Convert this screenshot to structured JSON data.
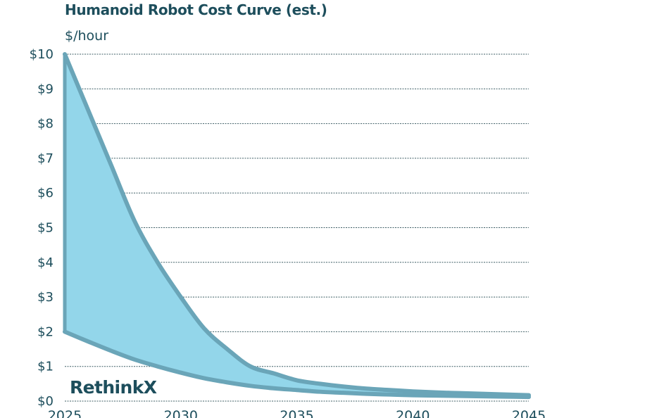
{
  "chart_data": {
    "type": "area",
    "title": "Humanoid Robot Cost Curve (est.)",
    "ylabel": "$/hour",
    "xlabel": "",
    "x_ticks": [
      "2025",
      "2030",
      "2035",
      "2040",
      "2045"
    ],
    "y_ticks": [
      "$0",
      "$1",
      "$2",
      "$3",
      "$4",
      "$5",
      "$6",
      "$7",
      "$8",
      "$9",
      "$10"
    ],
    "xlim": [
      2025,
      2045
    ],
    "ylim": [
      0,
      10
    ],
    "grid": true,
    "legend": false,
    "x": [
      2025,
      2026,
      2027,
      2028,
      2029,
      2030,
      2031,
      2032,
      2033,
      2034,
      2035,
      2036,
      2037,
      2038,
      2039,
      2040,
      2041,
      2042,
      2043,
      2044,
      2045
    ],
    "series": [
      {
        "values": [
          10.0,
          8.4,
          6.8,
          5.2,
          4.0,
          3.0,
          2.1,
          1.5,
          1.0,
          0.8,
          0.6,
          0.5,
          0.42,
          0.36,
          0.32,
          0.28,
          0.25,
          0.23,
          0.21,
          0.19,
          0.17
        ]
      },
      {
        "values": [
          2.0,
          1.72,
          1.45,
          1.2,
          1.0,
          0.82,
          0.66,
          0.54,
          0.44,
          0.37,
          0.32,
          0.27,
          0.24,
          0.21,
          0.19,
          0.17,
          0.16,
          0.15,
          0.14,
          0.13,
          0.12
        ]
      }
    ],
    "colors": {
      "band_fill": "#93d6ea",
      "line": "#6aa5b8",
      "grid": "#3f5f66",
      "text": "#1d4e5c"
    }
  },
  "brand": {
    "name": "RethinkX"
  }
}
